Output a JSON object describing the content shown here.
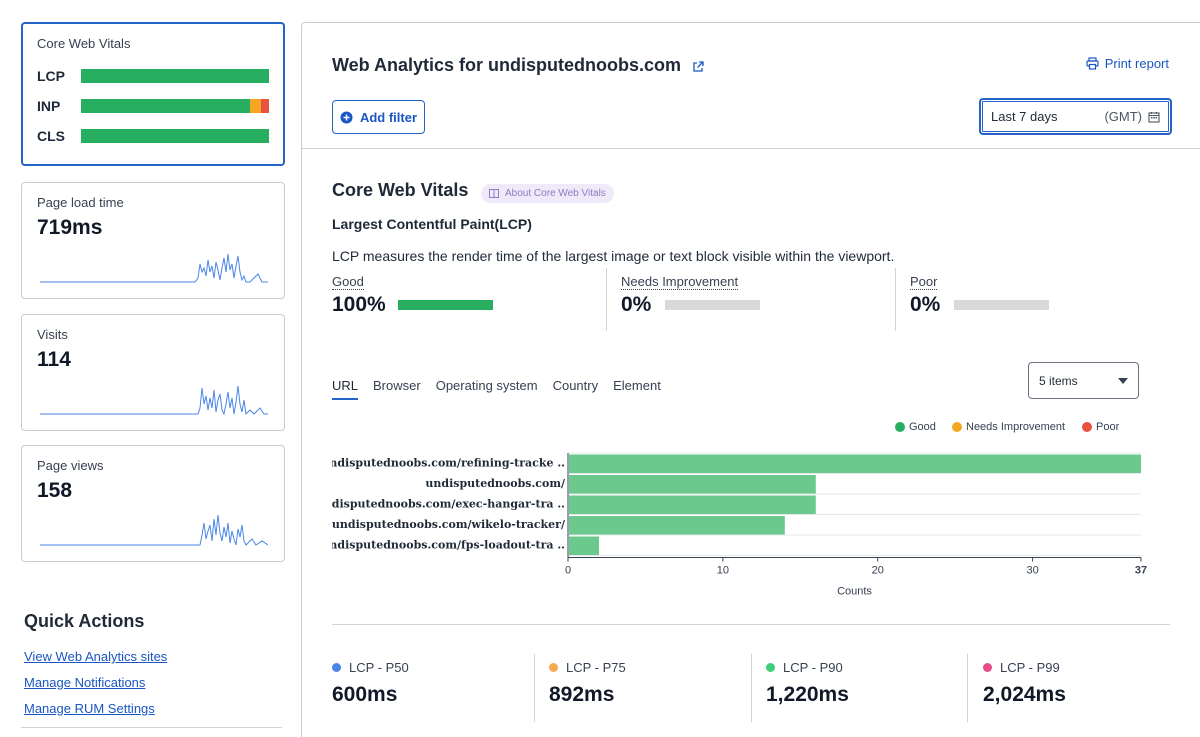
{
  "sidebar": {
    "cwv_card": {
      "title": "Core Web Vitals",
      "rows": [
        {
          "label": "LCP",
          "good": 100,
          "ni": 0,
          "poor": 0
        },
        {
          "label": "INP",
          "good": 90,
          "ni": 6,
          "poor": 4
        },
        {
          "label": "CLS",
          "good": 100,
          "ni": 0,
          "poor": 0
        }
      ]
    },
    "metrics": [
      {
        "title": "Page load time",
        "value": "719ms"
      },
      {
        "title": "Visits",
        "value": "114"
      },
      {
        "title": "Page views",
        "value": "158"
      }
    ],
    "quick_actions": {
      "title": "Quick Actions",
      "links": [
        "View Web Analytics sites",
        "Manage Notifications",
        "Manage RUM Settings"
      ]
    }
  },
  "header": {
    "title": "Web Analytics for undisputednoobs.com",
    "print_label": "Print report",
    "add_filter_label": "Add filter",
    "date_range": "Last 7 days",
    "timezone": "(GMT)"
  },
  "cwv": {
    "title": "Core Web Vitals",
    "about_label": "About Core Web Vitals",
    "metric_title": "Largest Contentful Paint(LCP)",
    "description": "LCP measures the render time of the largest image or text block visible within the viewport.",
    "distribution": [
      {
        "label": "Good",
        "value": "100%",
        "fraction": 1.0
      },
      {
        "label": "Needs Improvement",
        "value": "0%",
        "fraction": 0
      },
      {
        "label": "Poor",
        "value": "0%",
        "fraction": 0
      }
    ]
  },
  "tabs": [
    "URL",
    "Browser",
    "Operating system",
    "Country",
    "Element"
  ],
  "items_select": "5 items",
  "legend": [
    {
      "label": "Good",
      "color": "#27ae60"
    },
    {
      "label": "Needs Improvement",
      "color": "#f5a623"
    },
    {
      "label": "Poor",
      "color": "#e8523f"
    }
  ],
  "chart_data": {
    "type": "bar",
    "orientation": "horizontal",
    "categories": [
      "undisputednoobs.com/refining-tracke ..",
      "undisputednoobs.com/",
      "undisputednoobs.com/exec-hangar-tra ..",
      "undisputednoobs.com/wikelo-tracker/",
      "undisputednoobs.com/fps-loadout-tra .."
    ],
    "series": [
      {
        "name": "Good",
        "values": [
          37,
          16,
          16,
          14,
          2
        ]
      }
    ],
    "xlim": [
      0,
      37
    ],
    "xticks": [
      "0",
      "10",
      "20",
      "30",
      "37"
    ],
    "xlabel": "Counts",
    "grid": true
  },
  "percentiles": [
    {
      "label": "LCP - P50",
      "value": "600ms",
      "color": "#4a86e8"
    },
    {
      "label": "LCP - P75",
      "value": "892ms",
      "color": "#f5a94e"
    },
    {
      "label": "LCP - P90",
      "value": "1,220ms",
      "color": "#3ecf7a"
    },
    {
      "label": "LCP - P99",
      "value": "2,024ms",
      "color": "#e84c88"
    }
  ],
  "colors": {
    "good": "#27ae60",
    "ni": "#f5a623",
    "poor": "#e8523f",
    "bar": "#6cc98d",
    "empty": "#d9d9d9",
    "accent": "#2563c9"
  }
}
